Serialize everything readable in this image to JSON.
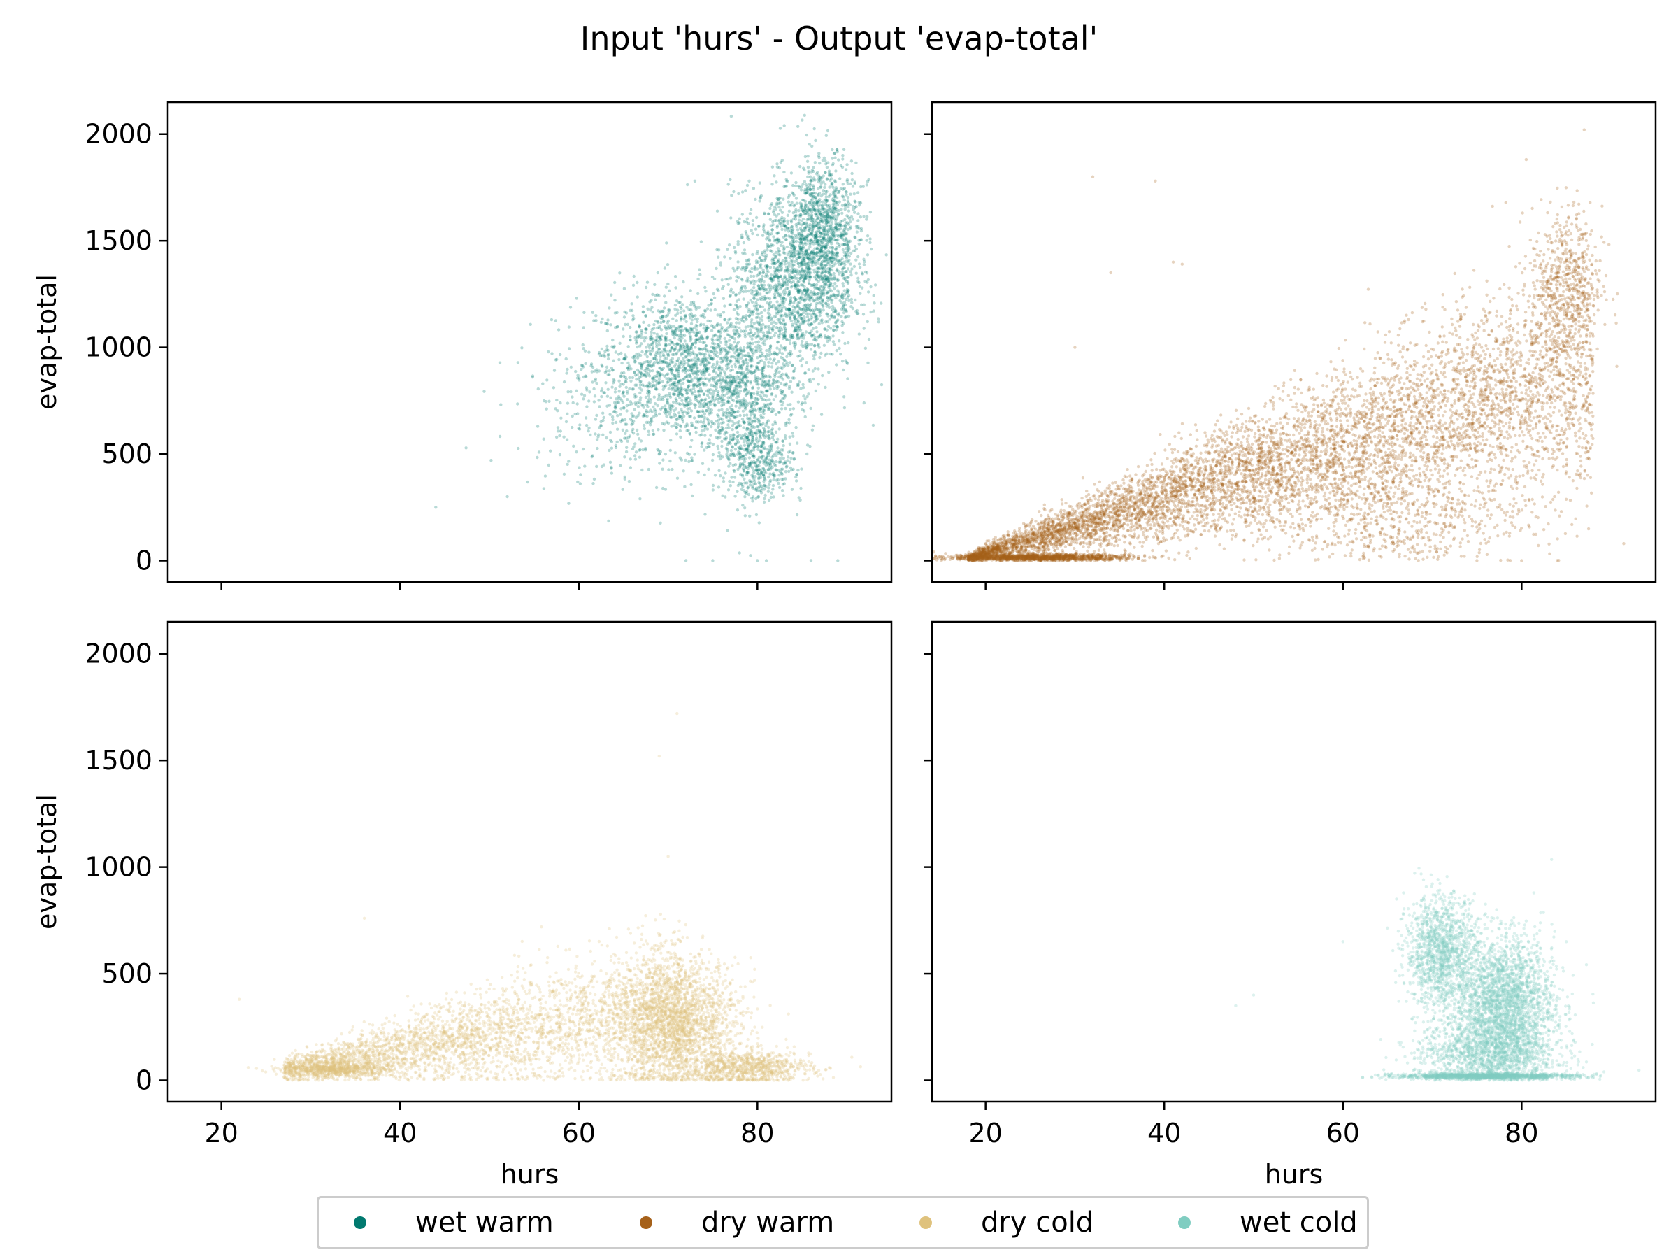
{
  "figure": {
    "title": "Input 'hurs' - Output 'evap-total'"
  },
  "legend": {
    "items": [
      {
        "label": "wet warm",
        "color": "#01796f"
      },
      {
        "label": "dry warm",
        "color": "#a6611a"
      },
      {
        "label": "dry cold",
        "color": "#dfc27d"
      },
      {
        "label": "wet cold",
        "color": "#80cdc1"
      }
    ]
  },
  "chart_data": [
    {
      "type": "scatter",
      "series": [
        {
          "name": "wet warm",
          "color": "#01796f"
        }
      ],
      "xlabel": "",
      "ylabel": "evap-total",
      "xlim": [
        14,
        95
      ],
      "ylim": [
        -100,
        2150
      ],
      "xticks": [],
      "yticks": [
        "0",
        "500",
        "1000",
        "1500",
        "2000"
      ],
      "clusters": [
        {
          "x": 72,
          "y": 900,
          "sx": 5,
          "sy": 180,
          "n": 1700
        },
        {
          "x": 84,
          "y": 1300,
          "sx": 3.5,
          "sy": 220,
          "n": 1600
        },
        {
          "x": 87.5,
          "y": 1550,
          "sx": 2,
          "sy": 170,
          "n": 900
        },
        {
          "x": 79,
          "y": 700,
          "sx": 3,
          "sy": 200,
          "n": 700
        },
        {
          "x": 80.5,
          "y": 450,
          "sx": 1.8,
          "sy": 80,
          "n": 300
        },
        {
          "x": 63,
          "y": 700,
          "sx": 5,
          "sy": 180,
          "n": 250
        }
      ],
      "extra_points": [
        [
          44,
          250
        ],
        [
          52,
          300
        ],
        [
          73,
          1780
        ],
        [
          83,
          2040
        ],
        [
          72,
          0
        ],
        [
          75,
          0
        ],
        [
          80,
          0
        ],
        [
          81,
          0
        ],
        [
          86,
          0
        ],
        [
          89,
          0
        ]
      ]
    },
    {
      "type": "scatter",
      "series": [
        {
          "name": "dry warm",
          "color": "#a6611a"
        }
      ],
      "xlabel": "",
      "ylabel": "",
      "xlim": [
        14,
        95
      ],
      "ylim": [
        -100,
        2150
      ],
      "xticks": [],
      "yticks": [],
      "band": {
        "x_from": 18,
        "x_to": 88,
        "y_at_from": 10,
        "y_at_to": 900,
        "spread_at_from": 10,
        "spread_at_to": 280,
        "n": 7000
      },
      "clusters": [
        {
          "x": 26,
          "y": 15,
          "sx": 5,
          "sy": 8,
          "n": 1200
        },
        {
          "x": 85,
          "y": 1300,
          "sx": 2,
          "sy": 180,
          "n": 500
        },
        {
          "x": 65,
          "y": 200,
          "sx": 8,
          "sy": 120,
          "n": 600
        }
      ],
      "extra_points": [
        [
          32,
          1800
        ],
        [
          39,
          1780
        ],
        [
          41,
          1400
        ],
        [
          42,
          1390
        ],
        [
          34,
          1350
        ],
        [
          30,
          1000
        ],
        [
          87,
          2020
        ],
        [
          75,
          0
        ],
        [
          80,
          0
        ],
        [
          84,
          0
        ]
      ]
    },
    {
      "type": "scatter",
      "series": [
        {
          "name": "dry cold",
          "color": "#dfc27d"
        }
      ],
      "xlabel": "hurs",
      "ylabel": "evap-total",
      "xlim": [
        14,
        95
      ],
      "ylim": [
        -100,
        2150
      ],
      "xticks": [
        "20",
        "40",
        "60",
        "80"
      ],
      "yticks": [
        "0",
        "500",
        "1000",
        "1500",
        "2000"
      ],
      "band": {
        "x_from": 27,
        "x_to": 72,
        "y_at_from": 50,
        "y_at_to": 350,
        "spread_at_from": 30,
        "spread_at_to": 180,
        "n": 3500
      },
      "clusters": [
        {
          "x": 71,
          "y": 260,
          "sx": 3.5,
          "sy": 150,
          "n": 2200
        },
        {
          "x": 79,
          "y": 60,
          "sx": 3.5,
          "sy": 40,
          "n": 800
        },
        {
          "x": 33,
          "y": 50,
          "sx": 3,
          "sy": 15,
          "n": 500
        }
      ],
      "extra_points": [
        [
          71,
          1720
        ],
        [
          69,
          1520
        ],
        [
          70,
          1050
        ],
        [
          22,
          380
        ],
        [
          23,
          60
        ],
        [
          36,
          760
        ]
      ]
    },
    {
      "type": "scatter",
      "series": [
        {
          "name": "wet cold",
          "color": "#80cdc1"
        }
      ],
      "xlabel": "hurs",
      "ylabel": "",
      "xlim": [
        14,
        95
      ],
      "ylim": [
        -100,
        2150
      ],
      "xticks": [
        "20",
        "40",
        "60",
        "80"
      ],
      "yticks": [],
      "clusters": [
        {
          "x": 71,
          "y": 600,
          "sx": 2,
          "sy": 130,
          "n": 1300
        },
        {
          "x": 78,
          "y": 350,
          "sx": 2.8,
          "sy": 160,
          "n": 2600
        },
        {
          "x": 76,
          "y": 120,
          "sx": 4,
          "sy": 80,
          "n": 1200
        },
        {
          "x": 76,
          "y": 20,
          "sx": 5,
          "sy": 6,
          "n": 1200
        }
      ],
      "extra_points": [
        [
          50,
          400
        ],
        [
          48,
          350
        ],
        [
          60,
          650
        ],
        [
          66,
          850
        ],
        [
          85,
          650
        ]
      ]
    }
  ]
}
